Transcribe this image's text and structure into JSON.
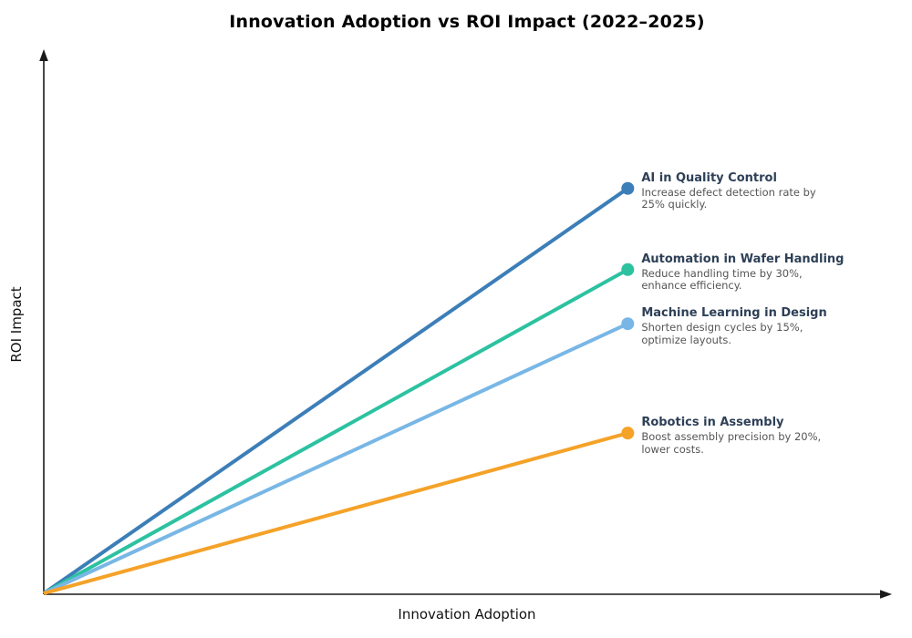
{
  "chart": {
    "title": "Innovation Adoption vs ROI Impact (2022–2025)",
    "xlabel": "Innovation Adoption",
    "ylabel": "ROI Impact",
    "axis_color": "#1a1a1a",
    "background_color": "#ffffff",
    "title_color": "#000000",
    "annotation_title_color": "#2e4057",
    "annotation_body_color": "#555555"
  },
  "chart_data": {
    "type": "line",
    "title": "Innovation Adoption vs ROI Impact (2022–2025)",
    "xlabel": "Innovation Adoption",
    "ylabel": "ROI Impact",
    "xlim": [
      0,
      1
    ],
    "ylim": [
      0,
      1
    ],
    "grid": false,
    "ticks": "none",
    "axes_style": "arrow-ended spines from origin, no tick labels",
    "legend": "none — each line labeled by annotation text at its endpoint marker",
    "series": [
      {
        "name": "AI in Quality Control",
        "annotation": "Increase defect detection rate by\n25% quickly.",
        "color": "#3c7eb8",
        "x": [
          0,
          0.69
        ],
        "y": [
          0,
          0.748
        ]
      },
      {
        "name": "Automation in Wafer Handling",
        "annotation": "Reduce handling time by 30%,\nenhance efficiency.",
        "color": "#2cc2a0",
        "x": [
          0,
          0.69
        ],
        "y": [
          0,
          0.598
        ]
      },
      {
        "name": "Machine Learning in Design",
        "annotation": "Shorten design cycles by 15%,\noptimize layouts.",
        "color": "#78b7e5",
        "x": [
          0,
          0.69
        ],
        "y": [
          0,
          0.498
        ]
      },
      {
        "name": "Robotics in Assembly",
        "annotation": "Boost assembly precision by 20%,\nlower costs.",
        "color": "#f5a228",
        "x": [
          0,
          0.69
        ],
        "y": [
          0,
          0.296
        ]
      }
    ]
  }
}
